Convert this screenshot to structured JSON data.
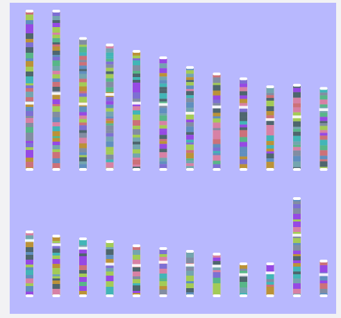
{
  "figure": {
    "background": "#b8b8fe",
    "band_palette": [
      "#6a5acd",
      "#3cb371",
      "#cd5c5c",
      "#4682b4",
      "#9acd32",
      "#8a2be2",
      "#20b2aa",
      "#b8860b",
      "#2f4f4f",
      "#db7093",
      "#5f9ea0",
      "#708090"
    ],
    "rows": [
      {
        "chromosomes": [
          {
            "label": "",
            "relative_length": 1.0,
            "centromere": 0.58
          },
          {
            "label": "",
            "relative_length": 1.0,
            "centromere": 0.52
          },
          {
            "label": "",
            "relative_length": 0.83,
            "centromere": 0.5
          },
          {
            "label": "",
            "relative_length": 0.79,
            "centromere": 0.4
          },
          {
            "label": "",
            "relative_length": 0.75,
            "centromere": 0.44
          },
          {
            "label": "",
            "relative_length": 0.71,
            "centromere": 0.42
          },
          {
            "label": "",
            "relative_length": 0.65,
            "centromere": 0.45
          },
          {
            "label": "",
            "relative_length": 0.61,
            "centromere": 0.35
          },
          {
            "label": "",
            "relative_length": 0.58,
            "centromere": 0.32
          },
          {
            "label": "",
            "relative_length": 0.53,
            "centromere": 0.4
          },
          {
            "label": "",
            "relative_length": 0.54,
            "centromere": 0.38
          },
          {
            "label": "",
            "relative_length": 0.52,
            "centromere": 0.27
          }
        ]
      },
      {
        "chromosomes": [
          {
            "label": "",
            "relative_length": 0.48,
            "centromere": 0.15
          },
          {
            "label": "",
            "relative_length": 0.45,
            "centromere": 0.16
          },
          {
            "label": "",
            "relative_length": 0.43,
            "centromere": 0.18
          },
          {
            "label": "",
            "relative_length": 0.41,
            "centromere": 0.42
          },
          {
            "label": "",
            "relative_length": 0.38,
            "centromere": 0.4
          },
          {
            "label": "",
            "relative_length": 0.36,
            "centromere": 0.3
          },
          {
            "label": "",
            "relative_length": 0.34,
            "centromere": 0.32
          },
          {
            "label": "",
            "relative_length": 0.32,
            "centromere": 0.3
          },
          {
            "label": "",
            "relative_length": 0.25,
            "centromere": 0.35
          },
          {
            "label": "",
            "relative_length": 0.25,
            "centromere": 0.3
          },
          {
            "label": "",
            "relative_length": 0.72,
            "centromere": 0.38
          },
          {
            "label": "",
            "relative_length": 0.27,
            "centromere": 0.4
          }
        ]
      }
    ]
  }
}
